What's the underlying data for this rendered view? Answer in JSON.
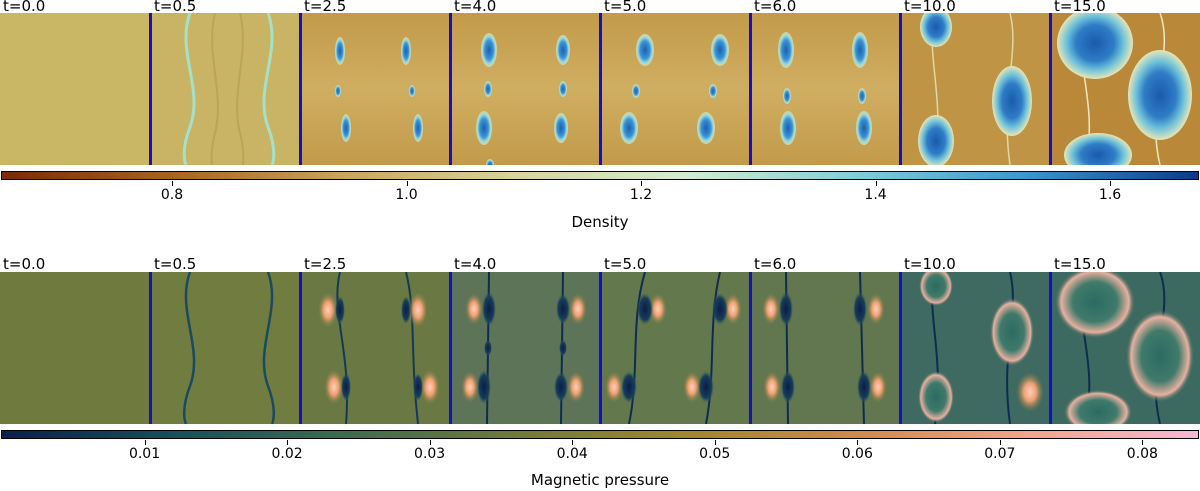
{
  "density": {
    "title": "Density",
    "panels": [
      {
        "label": "t=0.0",
        "icon": "uniform-density-field"
      },
      {
        "label": "t=0.5",
        "icon": "wavy-density-filaments"
      },
      {
        "label": "t=2.5",
        "icon": "density-cavities-forming"
      },
      {
        "label": "t=4.0",
        "icon": "density-plasmoid-chain"
      },
      {
        "label": "t=5.0",
        "icon": "density-plasmoids-merging"
      },
      {
        "label": "t=6.0",
        "icon": "density-plasmoid-islands"
      },
      {
        "label": "t=10.0",
        "icon": "density-turbulent-islands"
      },
      {
        "label": "t=15.0",
        "icon": "density-large-islands"
      }
    ],
    "colorbar": {
      "ticks": [
        "0.8",
        "1.0",
        "1.2",
        "1.4",
        "1.6"
      ],
      "tick_values": [
        0.8,
        1.0,
        1.2,
        1.4,
        1.6
      ],
      "range": [
        0.655,
        1.675
      ],
      "colors": [
        "#7a2a08",
        "#a8641e",
        "#c9a55a",
        "#d8d49a",
        "#d2ecd0",
        "#7fcfd8",
        "#3a96cf",
        "#0a3a8a"
      ]
    }
  },
  "magnetic": {
    "title": "Magnetic pressure",
    "panels": [
      {
        "label": "t=0.0",
        "icon": "uniform-magnetic-field"
      },
      {
        "label": "t=0.5",
        "icon": "wavy-current-sheets"
      },
      {
        "label": "t=2.5",
        "icon": "magnetic-pressure-lobes"
      },
      {
        "label": "t=4.0",
        "icon": "magnetic-pressure-chain"
      },
      {
        "label": "t=5.0",
        "icon": "magnetic-pressure-merging"
      },
      {
        "label": "t=6.0",
        "icon": "magnetic-pressure-islands"
      },
      {
        "label": "t=10.0",
        "icon": "magnetic-turbulent-islands"
      },
      {
        "label": "t=15.0",
        "icon": "magnetic-large-islands"
      }
    ],
    "colorbar": {
      "ticks": [
        "0.01",
        "0.02",
        "0.03",
        "0.04",
        "0.05",
        "0.06",
        "0.07",
        "0.08"
      ],
      "tick_values": [
        0.01,
        0.02,
        0.03,
        0.04,
        0.05,
        0.06,
        0.07,
        0.08
      ],
      "range": [
        0.0,
        0.0839
      ],
      "colors": [
        "#0b1f4a",
        "#174f5c",
        "#3d6c50",
        "#6f7a3a",
        "#a0862f",
        "#d08a4a",
        "#f2a58a",
        "#f6b8d4"
      ]
    }
  },
  "colors": {
    "density_bg": "#c9b766",
    "magnetic_bg": "#6f7a3f",
    "divider": "#1410c8"
  }
}
